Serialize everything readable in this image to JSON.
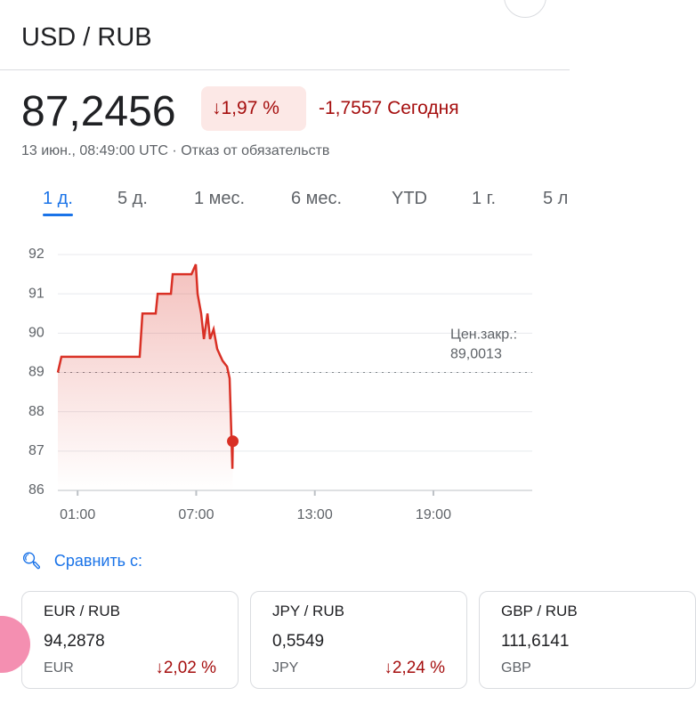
{
  "header": {
    "title": "USD / RUB"
  },
  "quote": {
    "price": "87,2456",
    "change_percent": "1,97 %",
    "change": "-1,7557",
    "period": "Сегодня",
    "timestamp": "13 июн., 08:49:00 UTC",
    "disclaimer": "Отказ от обязательств"
  },
  "tabs": [
    "1 д.",
    "5 д.",
    "1 мес.",
    "6 мес.",
    "YTD",
    "1 г.",
    "5 л"
  ],
  "chart_data": {
    "type": "line",
    "x": [
      0,
      0.18,
      4.14,
      4.28,
      4.95,
      5.05,
      5.72,
      5.81,
      6.76,
      6.98,
      7.07,
      7.25,
      7.39,
      7.57,
      7.7,
      7.88,
      8.06,
      8.33,
      8.56,
      8.69,
      8.78,
      8.83,
      8.85
    ],
    "values": [
      89.0,
      89.4,
      89.4,
      90.5,
      90.5,
      91.0,
      91.0,
      91.5,
      91.5,
      91.75,
      91.0,
      90.5,
      89.85,
      90.5,
      89.85,
      90.1,
      89.6,
      89.3,
      89.15,
      88.85,
      87.4,
      86.55,
      87.25
    ],
    "color": "#d93025",
    "xlim": [
      0,
      24
    ],
    "xticks": [
      {
        "value": 1,
        "label": "01:00"
      },
      {
        "value": 7,
        "label": "07:00"
      },
      {
        "value": 13,
        "label": "13:00"
      },
      {
        "value": 19,
        "label": "19:00"
      }
    ],
    "ylim": [
      86,
      92
    ],
    "yticks": [
      86,
      87,
      88,
      89,
      90,
      91,
      92
    ],
    "grid": true,
    "previous_close_title": "Цен.закр.:",
    "previous_close": {
      "value": 89.0013,
      "label": "89,0013"
    }
  },
  "compare": {
    "title": "Сравнить с:",
    "cards": [
      {
        "pair": "EUR / RUB",
        "price": "94,2878",
        "currency": "EUR",
        "change": "2,02 %"
      },
      {
        "pair": "JPY / RUB",
        "price": "0,5549",
        "currency": "JPY",
        "change": "2,24 %"
      },
      {
        "pair": "GBP / RUB",
        "price": "111,6141",
        "currency": "GBP",
        "change": ""
      }
    ]
  }
}
